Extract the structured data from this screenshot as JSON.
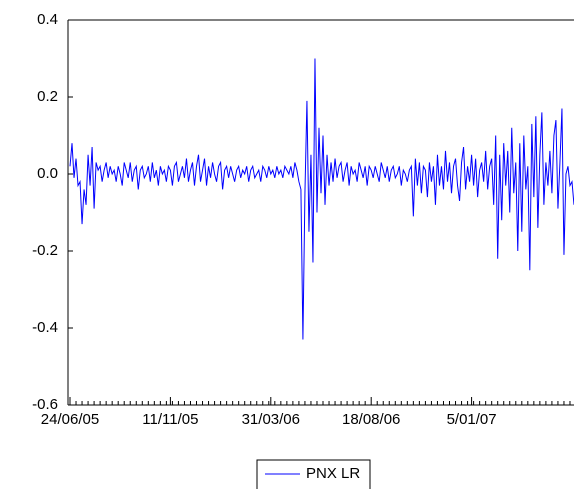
{
  "chart_data": {
    "type": "line",
    "categories": [
      "24/06/05",
      null,
      null,
      null,
      null,
      null,
      null,
      null,
      null,
      null,
      null,
      null,
      null,
      null,
      null,
      null,
      null,
      null,
      null,
      null,
      null,
      null,
      null,
      null,
      null,
      null,
      null,
      null,
      null,
      null,
      null,
      null,
      null,
      null,
      null,
      null,
      null,
      null,
      null,
      null,
      null,
      null,
      null,
      null,
      null,
      null,
      null,
      null,
      null,
      null,
      "11/11/05",
      null,
      null,
      null,
      null,
      null,
      null,
      null,
      null,
      null,
      null,
      null,
      null,
      null,
      null,
      null,
      null,
      null,
      null,
      null,
      null,
      null,
      null,
      null,
      null,
      null,
      null,
      null,
      null,
      null,
      null,
      null,
      null,
      null,
      null,
      null,
      null,
      null,
      null,
      null,
      null,
      null,
      null,
      null,
      null,
      null,
      null,
      null,
      null,
      null,
      "31/03/06",
      null,
      null,
      null,
      null,
      null,
      null,
      null,
      null,
      null,
      null,
      null,
      null,
      null,
      null,
      null,
      null,
      null,
      null,
      null,
      null,
      null,
      null,
      null,
      null,
      null,
      null,
      null,
      null,
      null,
      null,
      null,
      null,
      null,
      null,
      null,
      null,
      null,
      null,
      null,
      null,
      null,
      null,
      null,
      null,
      null,
      null,
      null,
      null,
      null,
      "18/08/06",
      null,
      null,
      null,
      null,
      null,
      null,
      null,
      null,
      null,
      null,
      null,
      null,
      null,
      null,
      null,
      null,
      null,
      null,
      null,
      null,
      null,
      null,
      null,
      null,
      null,
      null,
      null,
      null,
      null,
      null,
      null,
      null,
      null,
      null,
      null,
      null,
      null,
      null,
      null,
      null,
      null,
      null,
      null,
      null,
      null,
      null,
      null,
      null,
      null,
      "5/01/07",
      null,
      null,
      null,
      null,
      null,
      null,
      null,
      null,
      null,
      null,
      null,
      null,
      null,
      null,
      null,
      null,
      null,
      null,
      null,
      null,
      null,
      null,
      null,
      null,
      null,
      null,
      null,
      null,
      null,
      null,
      null,
      null,
      null,
      null,
      null,
      null,
      null,
      null,
      null,
      null,
      null,
      null,
      null,
      null,
      null,
      null,
      null,
      null,
      null,
      null,
      null
    ],
    "series": [
      {
        "name": "PNX LR",
        "color": "#0000ff",
        "values": [
          0.02,
          0.08,
          -0.01,
          0.04,
          -0.03,
          -0.02,
          -0.13,
          -0.04,
          -0.08,
          0.05,
          -0.03,
          0.07,
          -0.09,
          0.03,
          0.01,
          0.02,
          -0.02,
          0.01,
          0.03,
          -0.01,
          0.02,
          0.0,
          0.01,
          -0.02,
          0.02,
          0.0,
          -0.03,
          0.03,
          0.01,
          -0.01,
          0.03,
          -0.02,
          0.01,
          0.02,
          -0.04,
          0.01,
          0.02,
          -0.01,
          0.0,
          0.02,
          -0.02,
          0.03,
          -0.01,
          0.01,
          -0.03,
          0.02,
          0.0,
          0.01,
          -0.02,
          0.02,
          0.01,
          -0.03,
          0.02,
          0.03,
          -0.02,
          0.0,
          0.02,
          -0.01,
          0.04,
          -0.02,
          0.01,
          0.03,
          -0.03,
          0.02,
          0.05,
          -0.02,
          0.01,
          0.04,
          -0.03,
          0.02,
          -0.01,
          0.03,
          0.0,
          -0.02,
          0.02,
          0.03,
          -0.04,
          0.01,
          0.02,
          -0.01,
          0.02,
          0.0,
          -0.02,
          0.01,
          0.02,
          -0.01,
          0.01,
          0.0,
          0.02,
          -0.02,
          0.01,
          0.02,
          -0.01,
          0.0,
          0.01,
          -0.02,
          0.02,
          0.01,
          -0.01,
          0.02,
          0.0,
          0.01,
          -0.01,
          0.02,
          0.0,
          0.01,
          -0.01,
          0.02,
          0.01,
          0.0,
          0.02,
          -0.01,
          0.03,
          0.01,
          -0.02,
          -0.04,
          -0.43,
          -0.05,
          0.19,
          -0.15,
          0.05,
          -0.23,
          0.3,
          -0.1,
          0.12,
          -0.05,
          0.1,
          -0.08,
          0.05,
          -0.03,
          0.03,
          -0.02,
          0.04,
          -0.01,
          0.02,
          0.03,
          -0.02,
          0.01,
          0.03,
          -0.03,
          0.02,
          0.0,
          0.01,
          -0.02,
          0.03,
          0.01,
          -0.01,
          0.02,
          -0.03,
          0.02,
          0.01,
          -0.01,
          0.02,
          0.0,
          -0.02,
          0.03,
          0.01,
          -0.01,
          0.02,
          -0.02,
          0.01,
          0.02,
          -0.01,
          0.0,
          0.02,
          -0.03,
          0.01,
          0.0,
          -0.02,
          0.01,
          0.02,
          -0.11,
          0.04,
          -0.03,
          0.03,
          -0.05,
          0.02,
          0.01,
          -0.06,
          0.03,
          -0.02,
          0.02,
          -0.08,
          0.05,
          -0.03,
          0.02,
          -0.04,
          0.06,
          -0.02,
          0.03,
          -0.05,
          0.02,
          0.04,
          -0.03,
          -0.07,
          0.03,
          0.07,
          -0.04,
          0.02,
          -0.02,
          0.05,
          -0.03,
          0.04,
          -0.06,
          0.01,
          0.03,
          -0.02,
          0.06,
          -0.04,
          0.02,
          0.04,
          -0.08,
          0.1,
          -0.22,
          0.05,
          -0.12,
          0.08,
          -0.03,
          0.06,
          -0.1,
          0.12,
          -0.05,
          0.03,
          -0.2,
          0.08,
          -0.15,
          0.1,
          -0.04,
          0.02,
          -0.25,
          0.13,
          -0.06,
          0.15,
          -0.14,
          0.05,
          0.16,
          -0.08,
          0.03,
          -0.03,
          0.06,
          -0.05,
          0.1,
          0.14,
          -0.09,
          0.03,
          0.17,
          -0.21,
          0.0,
          0.02,
          -0.03,
          -0.02,
          -0.08
        ]
      }
    ],
    "ylim": [
      -0.6,
      0.4
    ],
    "yticks": [
      -0.6,
      -0.4,
      -0.2,
      {
        "value": 0,
        "label": "0.0"
      },
      0.2,
      0.4
    ],
    "legend": "bottom"
  }
}
